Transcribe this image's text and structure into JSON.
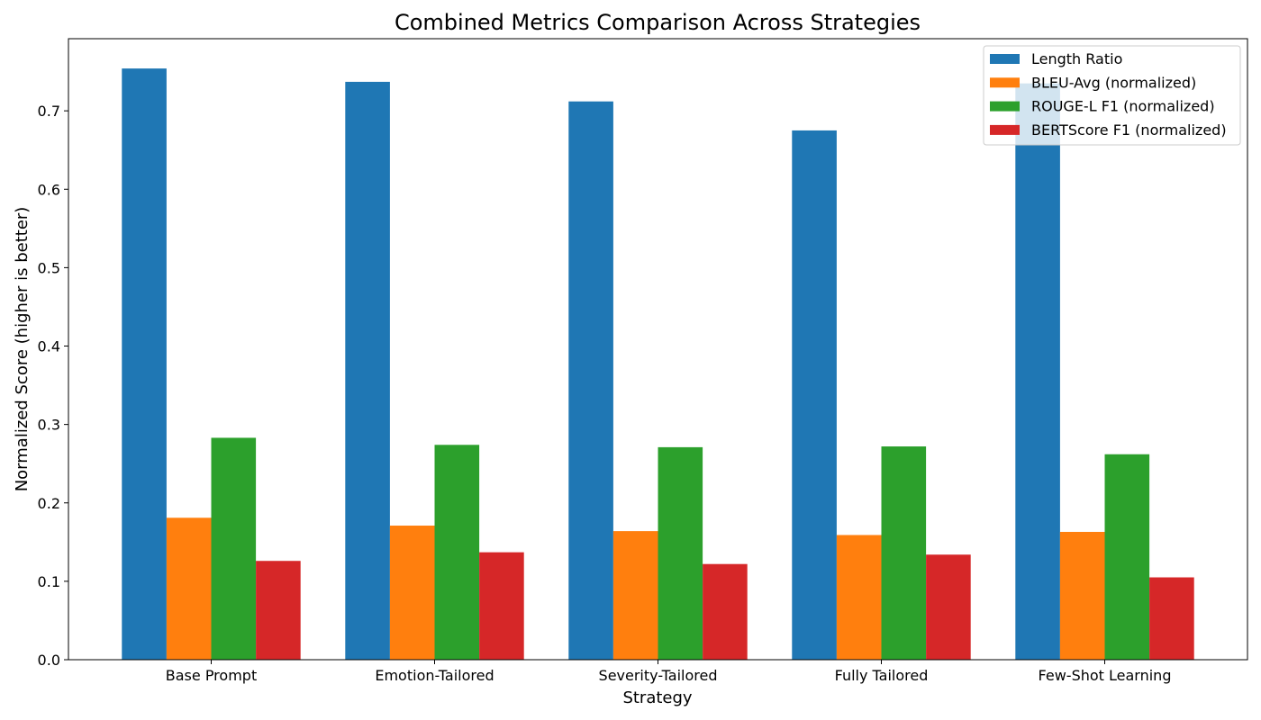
{
  "chart_data": {
    "type": "bar",
    "title": "Combined Metrics Comparison Across Strategies",
    "xlabel": "Strategy",
    "ylabel": "Normalized Score (higher is better)",
    "categories": [
      "Base Prompt",
      "Emotion-Tailored",
      "Severity-Tailored",
      "Fully Tailored",
      "Few-Shot Learning"
    ],
    "series": [
      {
        "name": "Length Ratio",
        "color": "#1f77b4",
        "values": [
          0.754,
          0.737,
          0.712,
          0.675,
          0.735
        ]
      },
      {
        "name": "BLEU-Avg (normalized)",
        "color": "#ff7f0e",
        "values": [
          0.181,
          0.171,
          0.164,
          0.159,
          0.163
        ]
      },
      {
        "name": "ROUGE-L F1 (normalized)",
        "color": "#2ca02c",
        "values": [
          0.283,
          0.274,
          0.271,
          0.272,
          0.262
        ]
      },
      {
        "name": "BERTScore F1 (normalized)",
        "color": "#d62728",
        "values": [
          0.126,
          0.137,
          0.122,
          0.134,
          0.105
        ]
      }
    ],
    "ylim": [
      0,
      0.792
    ],
    "yticks": [
      0.0,
      0.1,
      0.2,
      0.3,
      0.4,
      0.5,
      0.6,
      0.7
    ],
    "ytick_labels": [
      "0.0",
      "0.1",
      "0.2",
      "0.3",
      "0.4",
      "0.5",
      "0.6",
      "0.7"
    ],
    "grid": false,
    "legend_position": "top-right"
  }
}
